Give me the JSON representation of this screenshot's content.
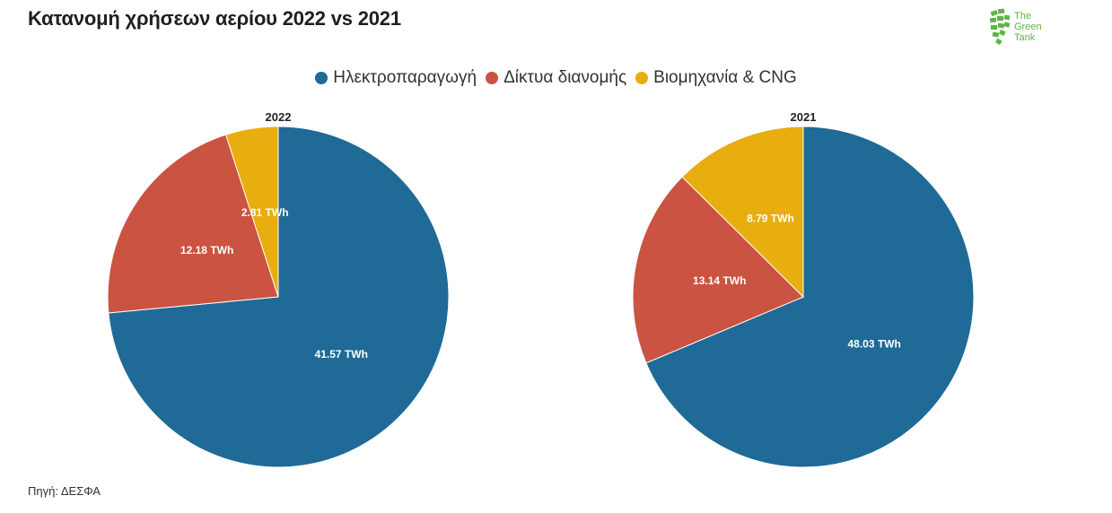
{
  "title": "Κατανομή χρήσεων αερίου 2022 vs 2021",
  "source": "Πηγή: ΔΕΣΦΑ",
  "logo": {
    "line1": "The",
    "line2": "Green",
    "line3": "Tank",
    "icon": "leaf-fan-logo-icon"
  },
  "colors": {
    "power": "#1f6a96",
    "network": "#cb5341",
    "industry": "#e8ad0f"
  },
  "chart_data": [
    {
      "type": "pie",
      "title": "2022",
      "series": [
        {
          "name": "Ηλεκτροπαραγωγή",
          "value": 41.57,
          "label": "41.57 TWh"
        },
        {
          "name": "Δίκτυα διανομής",
          "value": 12.18,
          "label": "12.18 TWh"
        },
        {
          "name": "Βιομηχανία & CNG",
          "value": 2.81,
          "label": "2.81 TWh"
        }
      ],
      "legend_position": "top-center"
    },
    {
      "type": "pie",
      "title": "2021",
      "series": [
        {
          "name": "Ηλεκτροπαραγωγή",
          "value": 48.03,
          "label": "48.03 TWh"
        },
        {
          "name": "Δίκτυα διανομής",
          "value": 13.14,
          "label": "13.14 TWh"
        },
        {
          "name": "Βιομηχανία & CNG",
          "value": 8.79,
          "label": "8.79 TWh"
        }
      ],
      "legend_position": "top-center"
    }
  ],
  "legend": [
    {
      "name": "Ηλεκτροπαραγωγή",
      "color_key": "power"
    },
    {
      "name": "Δίκτυα διανομής",
      "color_key": "network"
    },
    {
      "name": "Βιομηχανία & CNG",
      "color_key": "industry"
    }
  ]
}
